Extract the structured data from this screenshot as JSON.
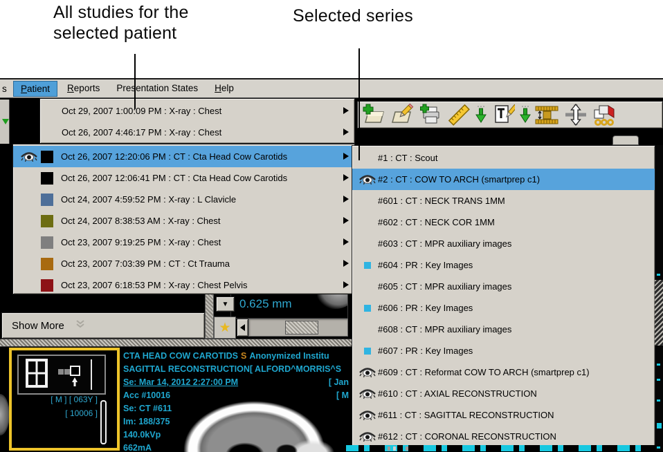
{
  "annotations": {
    "all_studies_line1": "All studies for the",
    "all_studies_line2": "selected patient",
    "selected_series": "Selected series"
  },
  "menubar": {
    "clipped_fragment": "s",
    "items": [
      {
        "label": "Patient",
        "underline": 0,
        "selected": true
      },
      {
        "label": "Reports",
        "underline": 0,
        "selected": false
      },
      {
        "label": "Presentation States",
        "underline": -1,
        "selected": false
      },
      {
        "label": "Help",
        "underline": 0,
        "selected": false
      }
    ]
  },
  "toolbar": {
    "icons": [
      "add-note-icon",
      "edit-note-icon",
      "add-print-icon",
      "ruler-icon",
      "import-arrow-icon",
      "text-note-icon",
      "import-arrow-icon",
      "spine-range-icon",
      "pan-vertical-icon",
      "link-series-icon"
    ]
  },
  "studies_menu": {
    "top_items": [
      {
        "label": "Oct 29, 2007 1:00:09 PM : X-ray : Chest"
      },
      {
        "label": "Oct 26, 2007 4:46:17 PM : X-ray : Chest"
      }
    ],
    "items": [
      {
        "label": "Oct 26, 2007 12:20:06 PM : CT : Cta Head Cow Carotids",
        "eye": true,
        "square": "#000000",
        "selected": true
      },
      {
        "label": "Oct 26, 2007 12:06:41 PM : CT : Cta Head Cow Carotids",
        "eye": false,
        "square": "#000000",
        "selected": false
      },
      {
        "label": "Oct 24, 2007 4:59:52 PM : X-ray : L Clavicle",
        "eye": false,
        "square": "#4e6f99",
        "selected": false
      },
      {
        "label": "Oct 24, 2007 8:38:53 AM : X-ray : Chest",
        "eye": false,
        "square": "#6d6d12",
        "selected": false
      },
      {
        "label": "Oct 23, 2007 9:19:25 PM : X-ray : Chest",
        "eye": false,
        "square": "#7f7f7f",
        "selected": false
      },
      {
        "label": "Oct 23, 2007 7:03:39 PM : CT : Ct Trauma",
        "eye": false,
        "square": "#a86a10",
        "selected": false
      },
      {
        "label": "Oct 23, 2007 6:18:53 PM : X-ray : Chest Pelvis",
        "eye": false,
        "square": "#8d1216",
        "selected": false
      }
    ]
  },
  "series_menu": {
    "items": [
      {
        "label": "#1 : CT : Scout",
        "icon": "none",
        "selected": false
      },
      {
        "label": "#2 : CT : COW TO ARCH (smartprep c1)",
        "icon": "eye",
        "selected": true
      },
      {
        "label": "#601 : CT : NECK TRANS  1MM",
        "icon": "none",
        "selected": false
      },
      {
        "label": "#602 : CT : NECK COR 1MM",
        "icon": "none",
        "selected": false
      },
      {
        "label": "#603 : CT : MPR auxiliary images",
        "icon": "none",
        "selected": false
      },
      {
        "label": "#604 : PR : Key Images",
        "icon": "square",
        "selected": false
      },
      {
        "label": "#605 : CT : MPR auxiliary images",
        "icon": "none",
        "selected": false
      },
      {
        "label": "#606 : PR : Key Images",
        "icon": "square",
        "selected": false
      },
      {
        "label": "#608 : CT : MPR auxiliary images",
        "icon": "none",
        "selected": false
      },
      {
        "label": "#607 : PR : Key Images",
        "icon": "square",
        "selected": false
      },
      {
        "label": "#609 : CT : Reformat COW TO ARCH (smartprep c1)",
        "icon": "eye",
        "selected": false
      },
      {
        "label": "#610 : CT : AXIAL RECONSTRUCTION",
        "icon": "eye",
        "selected": false
      },
      {
        "label": "#611 : CT : SAGITTAL RECONSTRUCTION",
        "icon": "eye",
        "selected": false
      },
      {
        "label": "#612 : CT : CORONAL RECONSTRUCTION",
        "icon": "eye",
        "selected": false
      }
    ],
    "key_square_color": "#2fb4e2"
  },
  "middle": {
    "show_more": "Show More",
    "value_label": "0.625 mm"
  },
  "viewer": {
    "thumb_text1": "[ M ] [ 063Y ]",
    "thumb_text2": "[ 10006 ]",
    "overlay": {
      "line1_left": "CTA HEAD COW CAROTIDS",
      "line1_badge": "S",
      "line1_right": "Anonymized Institu",
      "line2": "SAGITTAL RECONSTRUCTION[ ALFORD^MORRIS^S",
      "line3": "Se: Mar 14, 2012 2:27:00 PM",
      "line3_right": "[ Jan",
      "line4": "Acc #10016",
      "line4_right": "[ M",
      "line5": "Se: CT #611",
      "line6": "Im: 188/375",
      "line7": "140.0kVp",
      "line8": "662mA"
    }
  },
  "colors": {
    "highlight": "#57a3dc",
    "panel_gray": "#d6d2ca",
    "overlay_cyan": "#1fa7cf",
    "viewport_border": "#eec42a",
    "badge_orange": "#c8861e"
  }
}
